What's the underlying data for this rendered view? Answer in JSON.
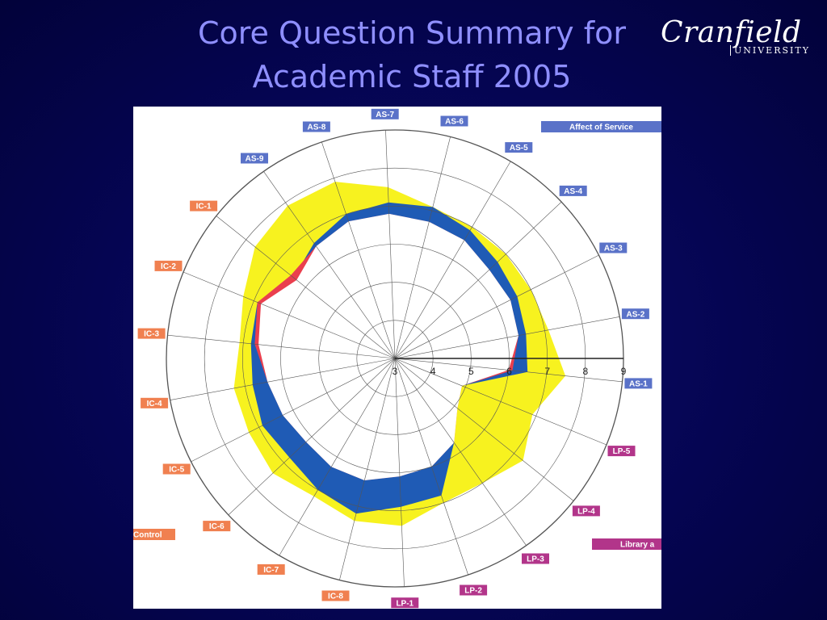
{
  "slide": {
    "title_line1": "Core Question Summary for",
    "title_line2": "Academic Staff 2005",
    "logo_word": "Cranfield",
    "logo_sub": "UNIVERSITY"
  },
  "colors": {
    "background": "#05055a",
    "title": "#8f8fff",
    "maximum": "#f7f21f",
    "perceived": "#1f5bb5",
    "minimum": "#ea3f4e",
    "group_AS": "#5a72c8",
    "group_LP": "#b2358a",
    "group_IC": "#f08050"
  },
  "chart_data": {
    "type": "radar",
    "axes": [
      "AS-1",
      "AS-2",
      "AS-3",
      "AS-4",
      "AS-5",
      "AS-6",
      "AS-7",
      "AS-8",
      "AS-9",
      "IC-1",
      "IC-2",
      "IC-3",
      "IC-4",
      "IC-5",
      "IC-6",
      "IC-7",
      "IC-8",
      "LP-1",
      "LP-2",
      "LP-3",
      "LP-4",
      "LP-5"
    ],
    "axis_groups": [
      "AS",
      "AS",
      "AS",
      "AS",
      "AS",
      "AS",
      "AS",
      "AS",
      "AS",
      "IC",
      "IC",
      "IC",
      "IC",
      "IC",
      "IC",
      "IC",
      "IC",
      "LP",
      "LP",
      "LP",
      "LP",
      "LP"
    ],
    "radial_ticks": [
      "3",
      "4",
      "5",
      "6",
      "7",
      "8",
      "9"
    ],
    "rlim": [
      3,
      9
    ],
    "legend": [
      "Affect of Service",
      "Library a",
      "Control"
    ],
    "series": [
      {
        "values": [
          7.5,
          7.1,
          7.0,
          7.0,
          7.0,
          7.1,
          7.5,
          7.9,
          7.9,
          7.7,
          7.3,
          7.1,
          7.3,
          7.3,
          7.4,
          7.2,
          7.4,
          7.4,
          7.0,
          7.0,
          7.3,
          6.9
        ]
      },
      {
        "values": [
          6.5,
          6.5,
          6.6,
          6.7,
          6.9,
          7.1,
          7.1,
          7.0,
          6.7,
          6.4,
          6.9,
          6.8,
          6.8,
          6.9,
          6.8,
          7.0,
          7.2,
          6.9,
          6.8,
          5.7,
          4.8,
          4.9
        ]
      },
      {
        "values": [
          6.1,
          6.3,
          6.4,
          6.4,
          6.6,
          6.7,
          6.8,
          6.8,
          6.6,
          6.5,
          6.9,
          6.7,
          6.4,
          6.3,
          6.2,
          6.3,
          6.3,
          6.1,
          6.0,
          5.7,
          5.1,
          4.9
        ]
      },
      {
        "values": [
          6.0,
          6.3,
          6.4,
          6.4,
          6.6,
          6.7,
          6.8,
          6.8,
          6.6,
          6.3,
          6.8,
          6.6,
          6.4,
          6.3,
          6.2,
          6.3,
          6.3,
          6.1,
          6.0,
          5.7,
          5.1,
          4.9
        ]
      }
    ]
  }
}
